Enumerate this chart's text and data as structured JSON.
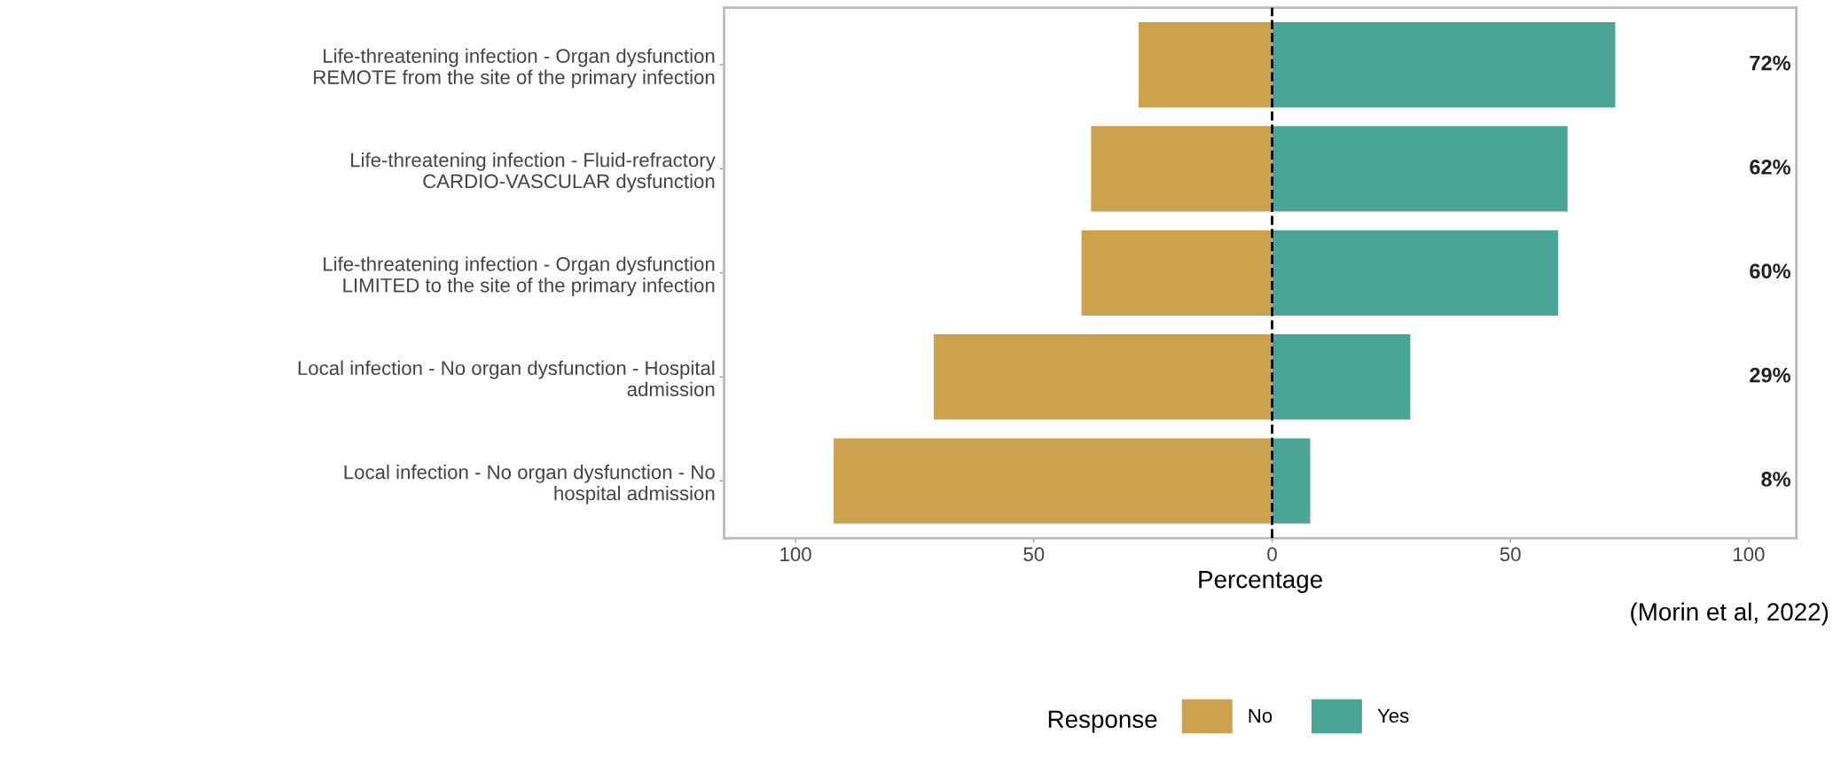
{
  "chart_data": {
    "type": "bar",
    "orientation": "horizontal",
    "stacked": true,
    "categories": [
      "Life-threatening infection - Organ dysfunction\nREMOTE from the site of the primary infection",
      "Life-threatening infection - Fluid-refractory\nCARDIO-VASCULAR dysfunction",
      "Life-threatening infection - Organ dysfunction\nLIMITED to the site of the primary infection",
      "Local infection - No organ dysfunction - Hospital\nadmission",
      "Local infection - No organ dysfunction - No\nhospital admission"
    ],
    "series": [
      {
        "name": "No",
        "color": "#cda24f",
        "values": [
          -28,
          -38,
          -40,
          -71,
          -92
        ]
      },
      {
        "name": "Yes",
        "color": "#4aa597",
        "values": [
          72,
          62,
          60,
          29,
          8
        ]
      }
    ],
    "xlim": [
      -115,
      110
    ],
    "xticks": [
      {
        "value": -100,
        "label": "100"
      },
      {
        "value": -50,
        "label": "50"
      },
      0,
      50,
      100
    ],
    "xlabel": "Percentage",
    "legend_title": "Response",
    "legend": "bottom",
    "ref_lines": [
      {
        "axis": "x",
        "value": 0,
        "color": "#000000",
        "line_style": "dashed"
      }
    ],
    "annotations": [
      "72%",
      "62%",
      "60%",
      "29%",
      "8%",
      "(Morin et al, 2022)"
    ]
  }
}
